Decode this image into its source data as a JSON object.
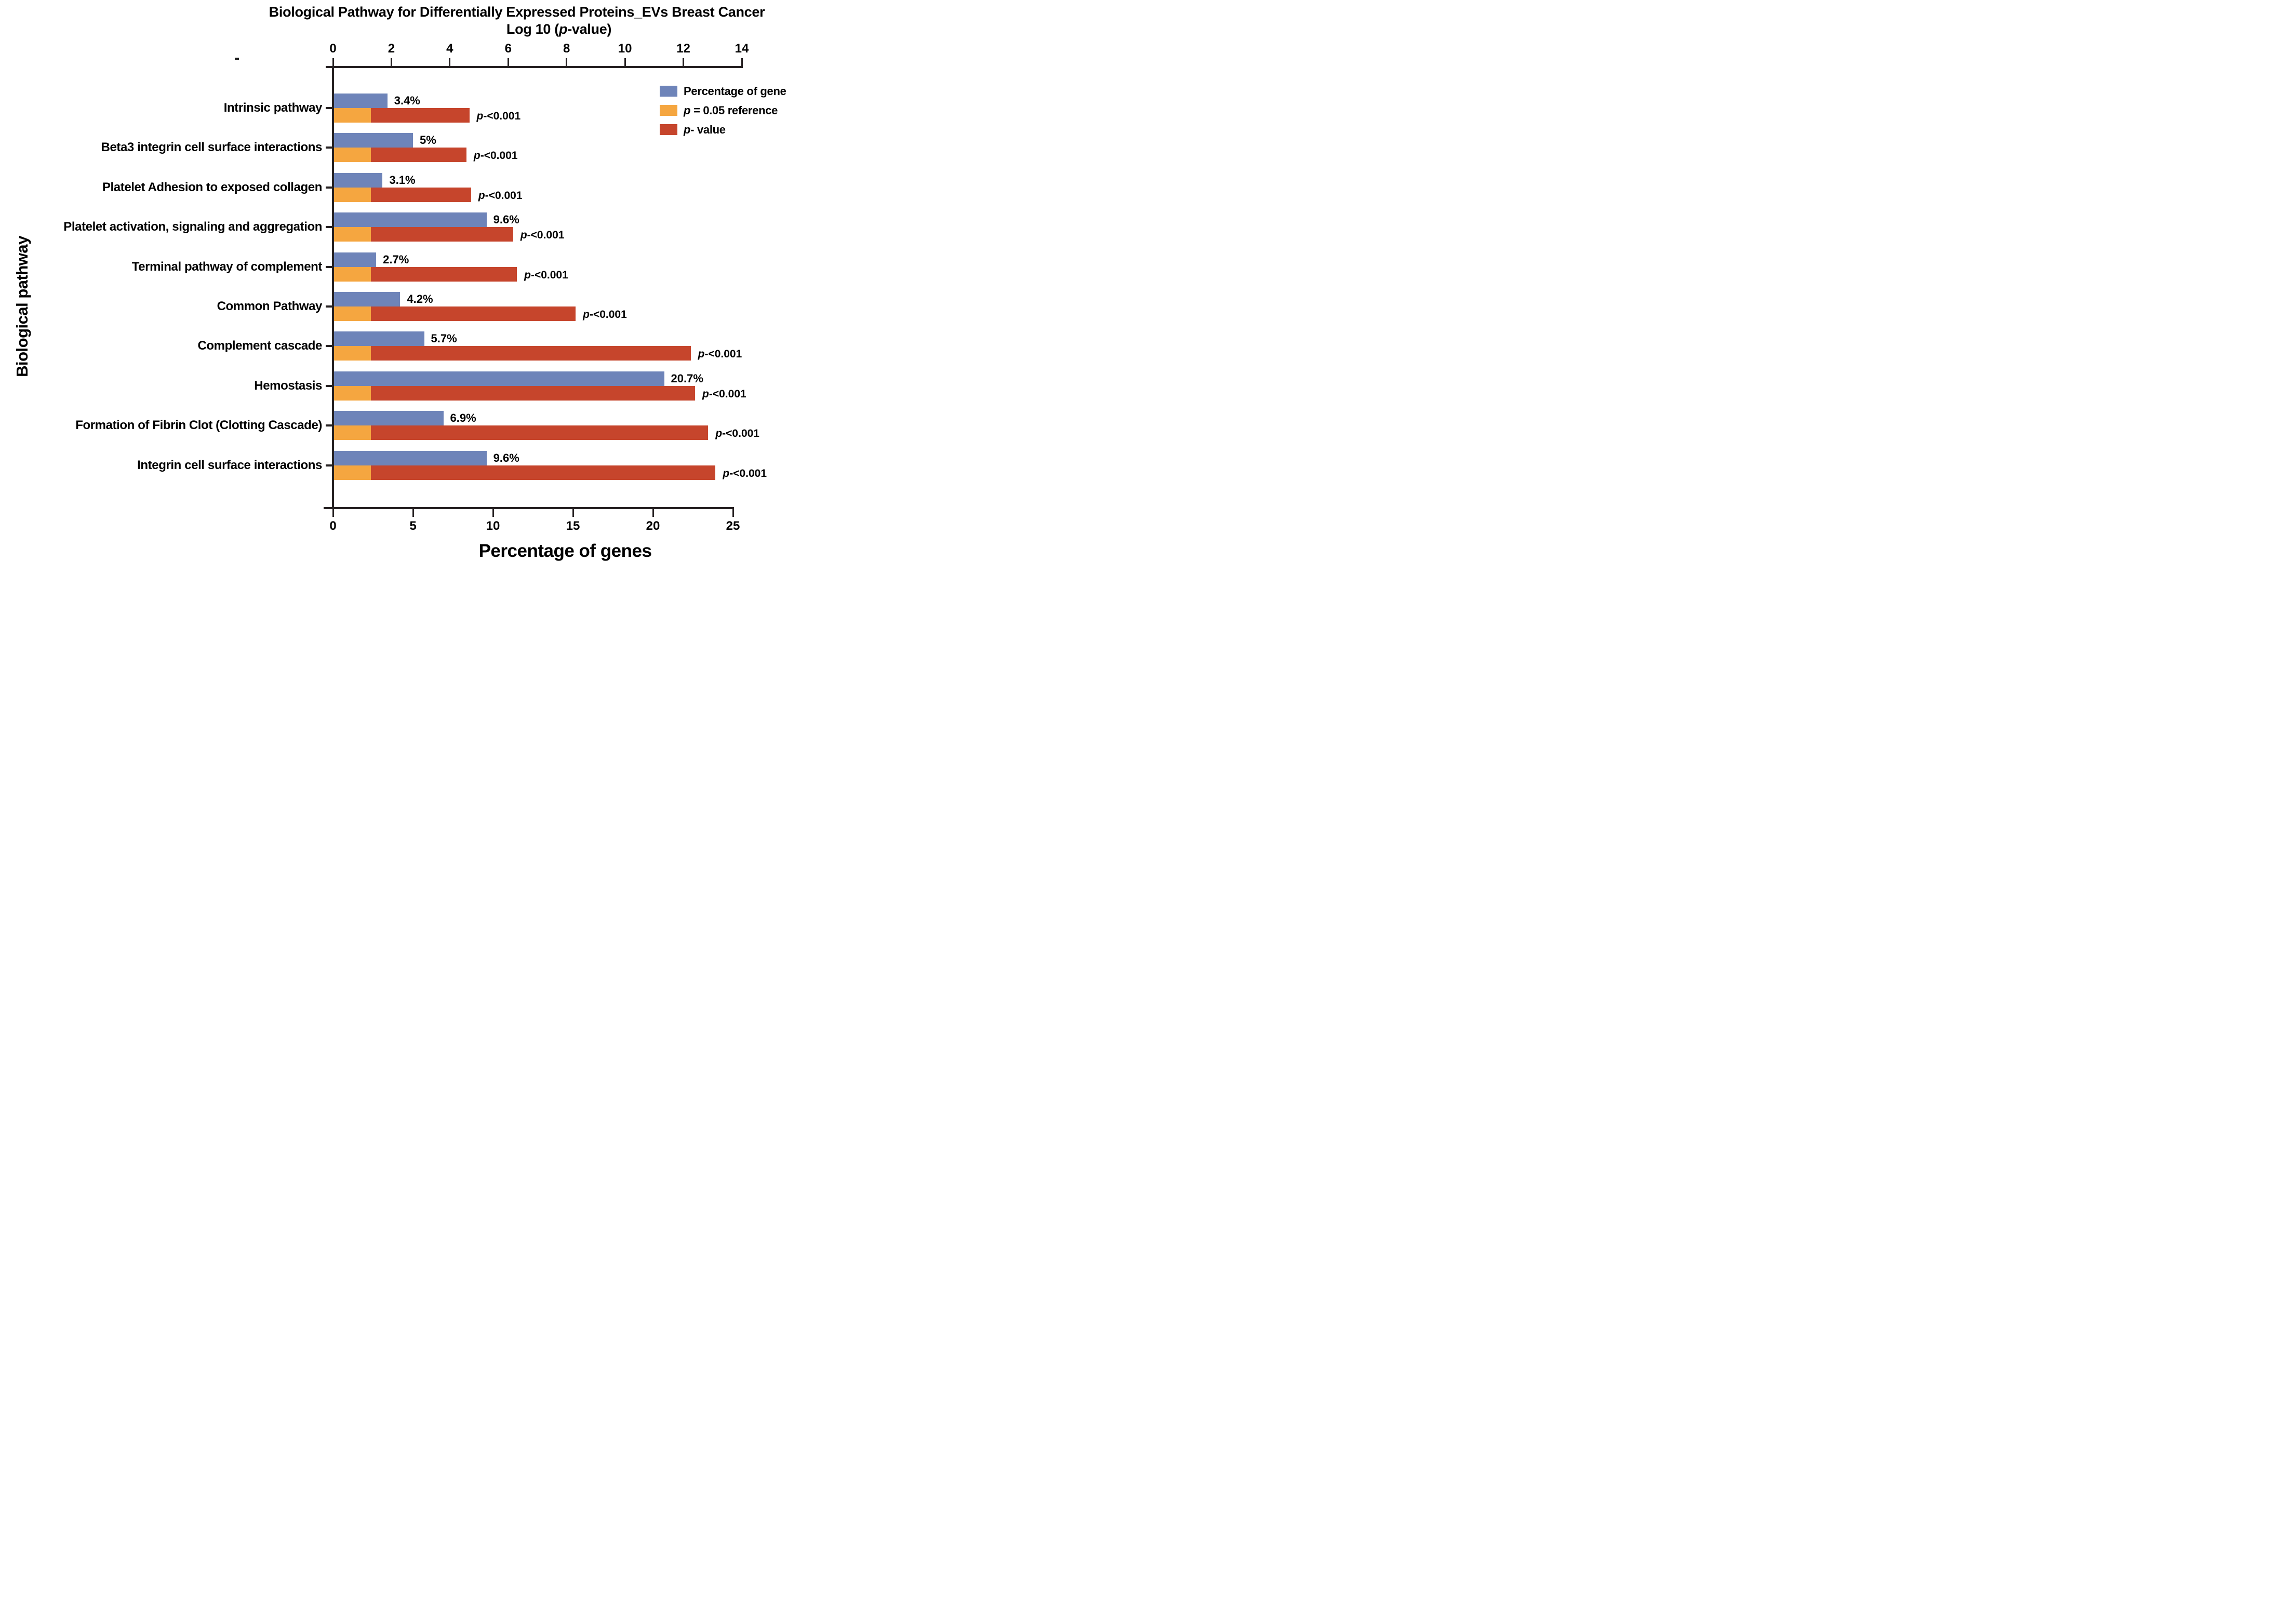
{
  "page": {
    "background": "#ffffff"
  },
  "chart_data": {
    "type": "bar",
    "orientation": "horizontal",
    "title": "Biological Pathway for Differentially Expressed Proteins_EVs Breast Cancer",
    "ylabel": "Biological pathway",
    "top_axis": {
      "label": "Log 10 (p-value)",
      "min": 0,
      "max": 14,
      "ticks": [
        0,
        2,
        4,
        6,
        8,
        10,
        12,
        14
      ]
    },
    "bottom_axis": {
      "label": "Percentage of genes",
      "min": 0,
      "max": 25,
      "ticks": [
        0,
        5,
        10,
        15,
        20,
        25
      ]
    },
    "grid": false,
    "legend_position": "top-right",
    "categories": [
      "Intrinsic pathway",
      "Beta3 integrin cell surface interactions",
      "Platelet Adhesion to exposed collagen",
      "Platelet activation, signaling and aggregation",
      "Terminal pathway of complement",
      "Common Pathway",
      "Complement cascade",
      "Hemostasis",
      "Formation of Fibrin Clot (Clotting Cascade)",
      "Integrin cell surface interactions"
    ],
    "series": [
      {
        "name": "Percentage of gene",
        "color": "#6e84b9",
        "axis": "bottom",
        "values": [
          3.4,
          5,
          3.1,
          9.6,
          2.7,
          4.2,
          5.7,
          20.7,
          6.9,
          9.6
        ],
        "labels": [
          "3.4%",
          "5%",
          "3.1%",
          "9.6%",
          "2.7%",
          "4.2%",
          "5.7%",
          "20.7%",
          "6.9%",
          "9.6%"
        ]
      },
      {
        "name": "p = 0.05 reference",
        "color": "#f5a640",
        "axis": "top",
        "values": [
          1.3,
          1.3,
          1.3,
          1.3,
          1.3,
          1.3,
          1.3,
          1.3,
          1.3,
          1.3
        ]
      },
      {
        "name": "p- value",
        "color": "#c6452c",
        "axis": "top",
        "values": [
          4.67,
          4.57,
          4.73,
          6.17,
          6.3,
          8.31,
          12.25,
          12.4,
          12.85,
          13.1
        ],
        "labels": [
          "p-<0.001",
          "p-<0.001",
          "p-<0.001",
          "p-<0.001",
          "p-<0.001",
          "p-<0.001",
          "p-<0.001",
          "p-<0.001",
          "p-<0.001",
          "p-<0.001"
        ]
      }
    ]
  }
}
